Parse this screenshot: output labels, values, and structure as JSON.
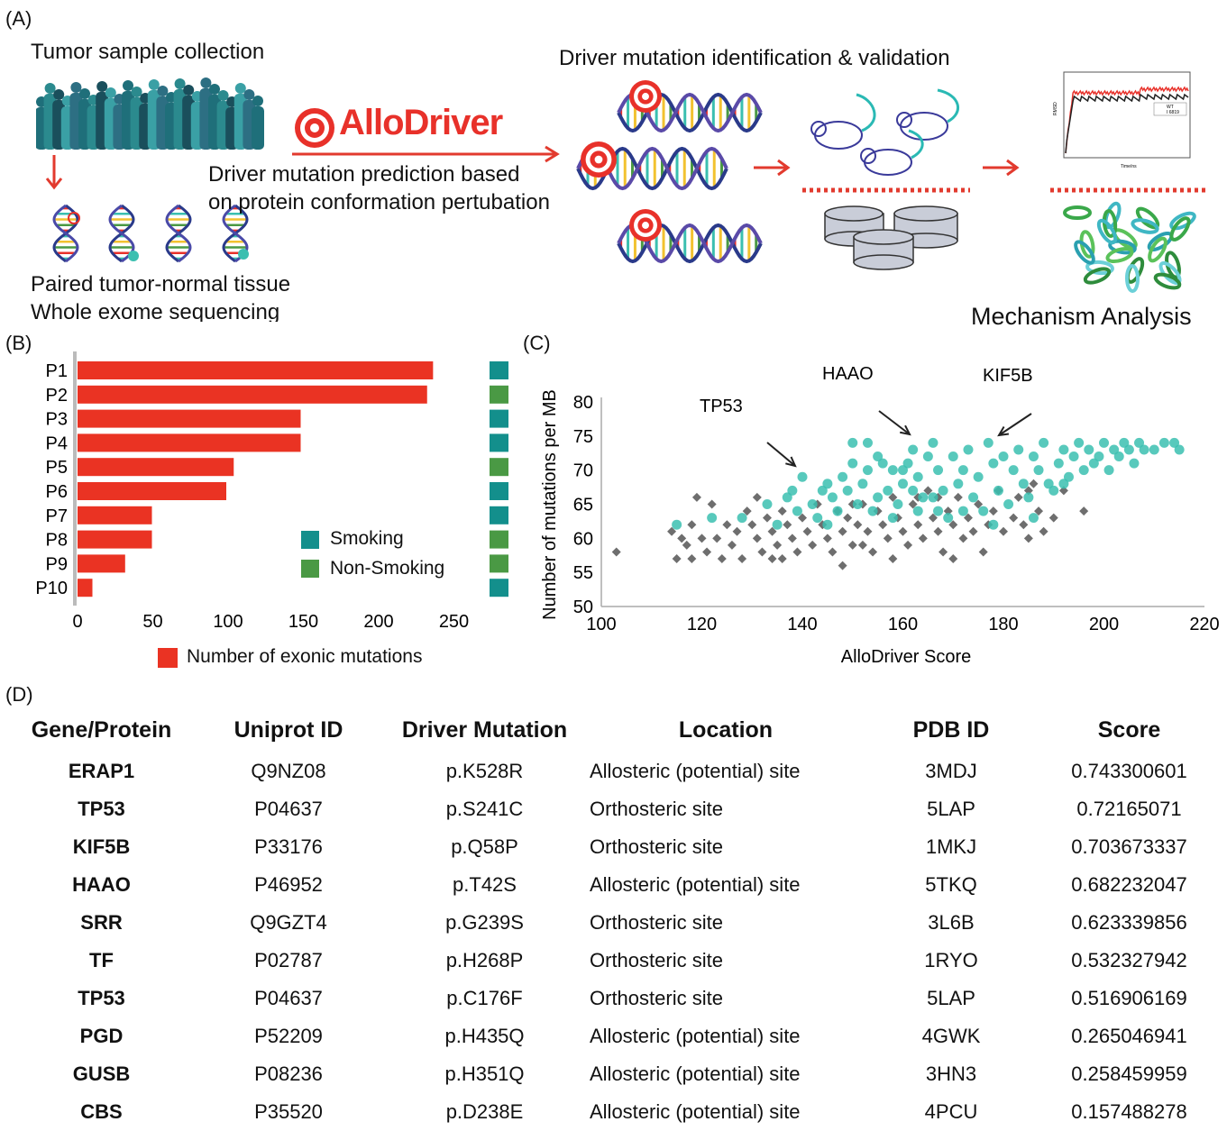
{
  "panel_a": {
    "label": "(A)",
    "collection_title": "Tumor sample collection",
    "tissue_line1": "Paired tumor-normal tissue",
    "tissue_line2": "Whole exome sequencing",
    "tool_name": "AlloDriver",
    "prediction_line1": "Driver mutation prediction based",
    "prediction_line2": "on protein conformation pertubation",
    "identification_title": "Driver mutation identification & validation",
    "mechanism_title": "Mechanism Analysis",
    "md_plot": {
      "y_axis": "RMSD",
      "x_axis": "Time/ns",
      "legend": [
        "WT",
        "I 6819"
      ],
      "colors": {
        "wt": "#222222",
        "mutant": "#e8312a"
      }
    }
  },
  "panel_b": {
    "label": "(B)",
    "legend_smoking": "Smoking",
    "legend_nonsmoking": "Non-Smoking",
    "bar_legend": "Number of exonic mutations",
    "colors": {
      "bar": "#ea3323",
      "smoking": "#138f8c",
      "nonsmoking": "#4a9944"
    }
  },
  "panel_c": {
    "label": "(C)",
    "annotations": [
      "TP53",
      "HAAO",
      "KIF5B"
    ],
    "colors": {
      "driver": "#3bbfb0",
      "other": "#4a4a4a"
    }
  },
  "panel_d": {
    "label": "(D)",
    "headers": [
      "Gene/Protein",
      "Uniprot ID",
      "Driver Mutation",
      "Location",
      "PDB ID",
      "Score"
    ],
    "rows": [
      [
        "ERAP1",
        "Q9NZ08",
        "p.K528R",
        "Allosteric (potential) site",
        "3MDJ",
        "0.743300601"
      ],
      [
        "TP53",
        "P04637",
        "p.S241C",
        "Orthosteric site",
        "5LAP",
        "0.72165071"
      ],
      [
        "KIF5B",
        "P33176",
        "p.Q58P",
        "Orthosteric site",
        "1MKJ",
        "0.703673337"
      ],
      [
        "HAAO",
        "P46952",
        "p.T42S",
        "Allosteric (potential) site",
        "5TKQ",
        "0.682232047"
      ],
      [
        "SRR",
        "Q9GZT4",
        "p.G239S",
        "Orthosteric site",
        "3L6B",
        "0.623339856"
      ],
      [
        "TF",
        "P02787",
        "p.H268P",
        "Orthosteric site",
        "1RYO",
        "0.532327942"
      ],
      [
        "TP53",
        "P04637",
        "p.C176F",
        "Orthosteric site",
        "5LAP",
        "0.516906169"
      ],
      [
        "PGD",
        "P52209",
        "p.H435Q",
        "Allosteric (potential) site",
        "4GWK",
        "0.265046941"
      ],
      [
        "GUSB",
        "P08236",
        "p.H351Q",
        "Allosteric (potential) site",
        "3HN3",
        "0.258459959"
      ],
      [
        "CBS",
        "P35520",
        "p.D238E",
        "Allosteric (potential) site",
        "4PCU",
        "0.157488278"
      ]
    ]
  },
  "chart_data": [
    {
      "type": "bar",
      "orientation": "horizontal",
      "categories": [
        "P1",
        "P2",
        "P3",
        "P4",
        "P5",
        "P6",
        "P7",
        "P8",
        "P9",
        "P10"
      ],
      "values": [
        239,
        235,
        150,
        150,
        105,
        100,
        50,
        50,
        32,
        10
      ],
      "smoking_status": [
        "Smoking",
        "Non-Smoking",
        "Smoking",
        "Smoking",
        "Non-Smoking",
        "Smoking",
        "Smoking",
        "Non-Smoking",
        "Non-Smoking",
        "Smoking"
      ],
      "xticks": [
        "0",
        "50",
        "100",
        "150",
        "200",
        "250"
      ],
      "xlim": [
        0,
        250
      ],
      "legend": "Number of exonic mutations",
      "grid": false
    },
    {
      "type": "scatter",
      "xlabel": "AlloDriver Score",
      "ylabel": "Number of mutations per MB",
      "xlim": [
        100,
        220
      ],
      "ylim": [
        50,
        80
      ],
      "xticks": [
        "100",
        "120",
        "140",
        "160",
        "180",
        "200",
        "220"
      ],
      "yticks": [
        "50",
        "55",
        "60",
        "65",
        "70",
        "75",
        "80"
      ],
      "grid": false,
      "series": [
        {
          "marker": "circle",
          "points": [
            [
              115,
              62
            ],
            [
              122,
              63
            ],
            [
              128,
              63
            ],
            [
              133,
              65
            ],
            [
              135,
              62
            ],
            [
              137,
              66
            ],
            [
              139,
              64
            ],
            [
              140,
              69
            ],
            [
              142,
              65
            ],
            [
              143,
              63
            ],
            [
              144,
              67
            ],
            [
              145,
              62
            ],
            [
              146,
              66
            ],
            [
              147,
              64
            ],
            [
              148,
              69
            ],
            [
              149,
              67
            ],
            [
              150,
              74
            ],
            [
              150,
              71
            ],
            [
              151,
              65
            ],
            [
              152,
              68
            ],
            [
              153,
              70
            ],
            [
              153,
              74
            ],
            [
              154,
              64
            ],
            [
              155,
              66
            ],
            [
              156,
              71
            ],
            [
              157,
              67
            ],
            [
              158,
              70
            ],
            [
              158,
              63
            ],
            [
              159,
              65
            ],
            [
              160,
              68
            ],
            [
              161,
              71
            ],
            [
              162,
              73
            ],
            [
              162,
              67
            ],
            [
              163,
              69
            ],
            [
              164,
              66
            ],
            [
              165,
              72
            ],
            [
              166,
              74
            ],
            [
              167,
              70
            ],
            [
              167,
              64
            ],
            [
              168,
              67
            ],
            [
              169,
              63
            ],
            [
              170,
              72
            ],
            [
              171,
              68
            ],
            [
              172,
              70
            ],
            [
              173,
              73
            ],
            [
              174,
              66
            ],
            [
              175,
              69
            ],
            [
              176,
              64
            ],
            [
              177,
              74
            ],
            [
              178,
              71
            ],
            [
              179,
              67
            ],
            [
              180,
              72
            ],
            [
              181,
              65
            ],
            [
              182,
              70
            ],
            [
              183,
              73
            ],
            [
              184,
              68
            ],
            [
              185,
              66
            ],
            [
              186,
              72
            ],
            [
              187,
              70
            ],
            [
              188,
              74
            ],
            [
              189,
              68
            ],
            [
              190,
              67
            ],
            [
              191,
              71
            ],
            [
              192,
              73
            ],
            [
              193,
              69
            ],
            [
              194,
              72
            ],
            [
              195,
              74
            ],
            [
              196,
              70
            ],
            [
              197,
              73
            ],
            [
              198,
              71
            ],
            [
              199,
              72
            ],
            [
              200,
              74
            ],
            [
              201,
              70
            ],
            [
              202,
              73
            ],
            [
              203,
              72
            ],
            [
              204,
              74
            ],
            [
              205,
              73
            ],
            [
              206,
              71
            ],
            [
              207,
              74
            ],
            [
              208,
              73
            ],
            [
              210,
              73
            ],
            [
              212,
              74
            ],
            [
              214,
              74
            ],
            [
              215,
              73
            ],
            [
              178,
              62
            ],
            [
              172,
              64
            ],
            [
              166,
              66
            ],
            [
              160,
              70
            ],
            [
              155,
              72
            ],
            [
              145,
              68
            ],
            [
              138,
              67
            ],
            [
              163,
              64
            ],
            [
              186,
              63
            ],
            [
              192,
              68
            ]
          ]
        },
        {
          "marker": "diamond",
          "points": [
            [
              103,
              58
            ],
            [
              114,
              61
            ],
            [
              115,
              57
            ],
            [
              116,
              60
            ],
            [
              117,
              59
            ],
            [
              118,
              62
            ],
            [
              118,
              57
            ],
            [
              119,
              66
            ],
            [
              120,
              60
            ],
            [
              121,
              58
            ],
            [
              122,
              65
            ],
            [
              123,
              60
            ],
            [
              124,
              57
            ],
            [
              125,
              62
            ],
            [
              126,
              59
            ],
            [
              127,
              61
            ],
            [
              128,
              57
            ],
            [
              129,
              64
            ],
            [
              130,
              62
            ],
            [
              131,
              60
            ],
            [
              131,
              66
            ],
            [
              132,
              58
            ],
            [
              133,
              63
            ],
            [
              134,
              61
            ],
            [
              135,
              59
            ],
            [
              136,
              64
            ],
            [
              137,
              62
            ],
            [
              138,
              60
            ],
            [
              139,
              58
            ],
            [
              140,
              63
            ],
            [
              141,
              61
            ],
            [
              142,
              59
            ],
            [
              143,
              65
            ],
            [
              144,
              62
            ],
            [
              145,
              60
            ],
            [
              146,
              58
            ],
            [
              147,
              64
            ],
            [
              148,
              61
            ],
            [
              149,
              63
            ],
            [
              150,
              59
            ],
            [
              151,
              62
            ],
            [
              152,
              65
            ],
            [
              153,
              61
            ],
            [
              154,
              58
            ],
            [
              155,
              64
            ],
            [
              156,
              62
            ],
            [
              157,
              60
            ],
            [
              158,
              66
            ],
            [
              159,
              63
            ],
            [
              160,
              61
            ],
            [
              161,
              59
            ],
            [
              162,
              65
            ],
            [
              163,
              62
            ],
            [
              164,
              60
            ],
            [
              165,
              67
            ],
            [
              166,
              63
            ],
            [
              167,
              61
            ],
            [
              168,
              58
            ],
            [
              169,
              64
            ],
            [
              170,
              62
            ],
            [
              171,
              66
            ],
            [
              172,
              60
            ],
            [
              173,
              63
            ],
            [
              174,
              61
            ],
            [
              175,
              65
            ],
            [
              176,
              58
            ],
            [
              177,
              62
            ],
            [
              178,
              64
            ],
            [
              179,
              67
            ],
            [
              180,
              61
            ],
            [
              182,
              63
            ],
            [
              183,
              66
            ],
            [
              184,
              62
            ],
            [
              185,
              60
            ],
            [
              186,
              68
            ],
            [
              187,
              64
            ],
            [
              188,
              61
            ],
            [
              190,
              63
            ],
            [
              192,
              67
            ],
            [
              196,
              64
            ],
            [
              158,
              57
            ],
            [
              148,
              56
            ],
            [
              136,
              57
            ],
            [
              152,
              59
            ],
            [
              167,
              66
            ],
            [
              134,
              57
            ],
            [
              150,
              65
            ],
            [
              170,
              57
            ],
            [
              185,
              67
            ],
            [
              163,
              66
            ]
          ]
        }
      ],
      "annotations": [
        "TP53",
        "HAAO",
        "KIF5B"
      ]
    }
  ]
}
